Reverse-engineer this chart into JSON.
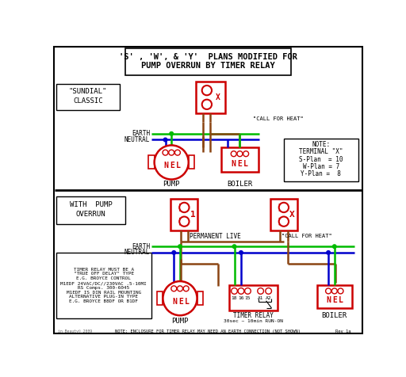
{
  "title_line1": "'S' , 'W', & 'Y'  PLANS MODIFIED FOR",
  "title_line2": "PUMP OVERRUN BY TIMER RELAY",
  "bg_color": "#ffffff",
  "red": "#cc0000",
  "green": "#00bb00",
  "blue": "#0000cc",
  "brown": "#8B4513",
  "black": "#000000",
  "white": "#ffffff",
  "gray": "#666666",
  "sundial_label1": "\"SUNDIAL\"",
  "sundial_label2": "CLASSIC",
  "with_pump1": "WITH  PUMP",
  "with_pump2": "OVERRUN",
  "note_title": "NOTE:",
  "note_terminal": "TERMINAL \"X\"",
  "note_s": "S-Plan  = 10",
  "note_w": "W-Plan = 7",
  "note_y": "Y-Plan =  8",
  "call_heat": "\"CALL FOR HEAT\"",
  "perm_live": "PERMANENT LIVE",
  "earth_lbl": "EARTH",
  "neutral_lbl": "NEUTRAL",
  "pump_lbl": "PUMP",
  "boiler_lbl": "BOILER",
  "timer_relay_lbl1": "TIMER RELAY",
  "timer_relay_lbl2": "30sec ~ 10min RUN-ON",
  "bottom_note": "NOTE: ENCLOSURE FOR TIMER RELAY MAY NEED AN EARTH CONNECTION (NOT SHOWN)",
  "timer_info": "TIMER RELAY MUST BE A\n\"TRUE OFF DELAY\" TYPE\nE.G. BROYCE CONTROL\nM1EDF 24VAC/DC//230VAC .5-10MI\nRS Comps. 300-6045\nM1EDF IS DIN RAIL MOUNTING\nALTERNATIVE PLUG-IN TYPE\nE.G. BROYCE B8DF OR B1DF",
  "copyright": "in Beauty© 2009",
  "rev": "Rev 1a"
}
